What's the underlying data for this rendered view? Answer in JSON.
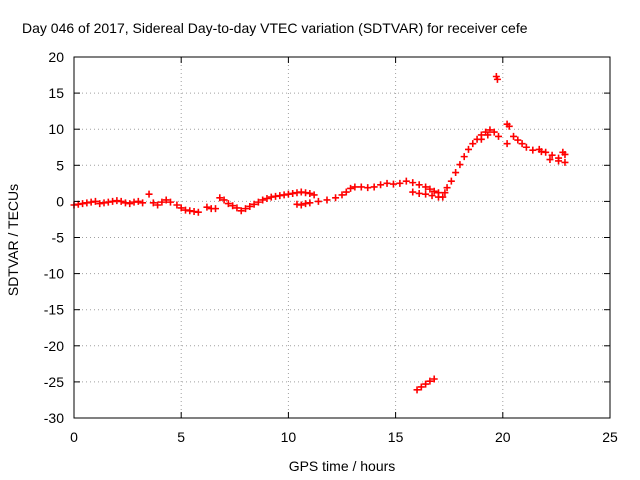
{
  "chart_data": {
    "type": "scatter",
    "title": "Day 046 of 2017, Sidereal Day-to-day VTEC variation (SDTVAR) for receiver cefe",
    "xlabel": "GPS time / hours",
    "ylabel": "SDTVAR / TECUs",
    "xlim": [
      0,
      25
    ],
    "ylim": [
      -30,
      20
    ],
    "xticks": [
      0,
      5,
      10,
      15,
      20,
      25
    ],
    "yticks": [
      -30,
      -25,
      -20,
      -15,
      -10,
      -5,
      0,
      5,
      10,
      15,
      20
    ],
    "grid": true,
    "marker": "+",
    "color": "#ff0000",
    "series": [
      {
        "name": "SDTVAR",
        "points": [
          [
            0.0,
            -0.5
          ],
          [
            0.2,
            -0.4
          ],
          [
            0.4,
            -0.3
          ],
          [
            0.6,
            -0.2
          ],
          [
            0.8,
            -0.1
          ],
          [
            1.0,
            0.0
          ],
          [
            1.2,
            -0.3
          ],
          [
            1.4,
            -0.2
          ],
          [
            1.6,
            -0.1
          ],
          [
            1.8,
            0.0
          ],
          [
            2.0,
            0.1
          ],
          [
            2.2,
            0.0
          ],
          [
            2.4,
            -0.2
          ],
          [
            2.6,
            -0.3
          ],
          [
            2.8,
            -0.1
          ],
          [
            3.0,
            0.0
          ],
          [
            3.2,
            -0.2
          ],
          [
            3.5,
            1.0
          ],
          [
            3.7,
            -0.2
          ],
          [
            3.9,
            -0.5
          ],
          [
            4.1,
            -0.1
          ],
          [
            4.3,
            0.2
          ],
          [
            4.5,
            -0.1
          ],
          [
            4.8,
            -0.5
          ],
          [
            5.0,
            -0.9
          ],
          [
            5.2,
            -1.2
          ],
          [
            5.4,
            -1.3
          ],
          [
            5.6,
            -1.4
          ],
          [
            5.8,
            -1.5
          ],
          [
            6.2,
            -0.8
          ],
          [
            6.4,
            -1.0
          ],
          [
            6.6,
            -1.0
          ],
          [
            6.8,
            0.5
          ],
          [
            7.0,
            0.2
          ],
          [
            7.2,
            -0.3
          ],
          [
            7.4,
            -0.6
          ],
          [
            7.6,
            -0.9
          ],
          [
            7.8,
            -1.3
          ],
          [
            8.0,
            -1.0
          ],
          [
            8.2,
            -0.7
          ],
          [
            8.4,
            -0.4
          ],
          [
            8.6,
            -0.1
          ],
          [
            8.8,
            0.2
          ],
          [
            9.0,
            0.4
          ],
          [
            9.2,
            0.6
          ],
          [
            9.4,
            0.7
          ],
          [
            9.6,
            0.8
          ],
          [
            9.8,
            0.9
          ],
          [
            10.0,
            1.0
          ],
          [
            10.2,
            1.1
          ],
          [
            10.4,
            1.2
          ],
          [
            10.6,
            1.3
          ],
          [
            10.8,
            1.2
          ],
          [
            11.0,
            1.1
          ],
          [
            11.2,
            0.9
          ],
          [
            10.4,
            -0.4
          ],
          [
            10.6,
            -0.5
          ],
          [
            10.8,
            -0.3
          ],
          [
            11.0,
            -0.2
          ],
          [
            11.4,
            0.0
          ],
          [
            11.8,
            0.2
          ],
          [
            12.2,
            0.5
          ],
          [
            12.5,
            0.9
          ],
          [
            12.7,
            1.3
          ],
          [
            12.9,
            1.8
          ],
          [
            13.1,
            2.0
          ],
          [
            13.4,
            2.0
          ],
          [
            13.7,
            1.9
          ],
          [
            14.0,
            2.0
          ],
          [
            14.3,
            2.3
          ],
          [
            14.6,
            2.5
          ],
          [
            14.9,
            2.4
          ],
          [
            15.2,
            2.5
          ],
          [
            15.5,
            2.8
          ],
          [
            15.8,
            2.6
          ],
          [
            16.1,
            2.3
          ],
          [
            16.4,
            2.0
          ],
          [
            16.6,
            1.7
          ],
          [
            16.8,
            1.4
          ],
          [
            17.0,
            1.2
          ],
          [
            15.8,
            1.3
          ],
          [
            16.1,
            1.1
          ],
          [
            16.4,
            1.0
          ],
          [
            16.7,
            0.8
          ],
          [
            17.0,
            0.6
          ],
          [
            17.2,
            0.6
          ],
          [
            17.3,
            1.2
          ],
          [
            17.4,
            1.9
          ],
          [
            17.6,
            2.8
          ],
          [
            17.8,
            4.0
          ],
          [
            18.0,
            5.1
          ],
          [
            18.2,
            6.2
          ],
          [
            18.4,
            7.2
          ],
          [
            18.6,
            8.0
          ],
          [
            18.8,
            8.6
          ],
          [
            19.0,
            9.2
          ],
          [
            19.2,
            9.6
          ],
          [
            19.4,
            9.9
          ],
          [
            19.6,
            9.6
          ],
          [
            19.8,
            9.0
          ],
          [
            19.0,
            8.6
          ],
          [
            19.3,
            9.2
          ],
          [
            19.7,
            17.3
          ],
          [
            19.75,
            16.9
          ],
          [
            20.2,
            10.7
          ],
          [
            20.3,
            10.4
          ],
          [
            20.2,
            8.0
          ],
          [
            20.5,
            9.0
          ],
          [
            20.7,
            8.5
          ],
          [
            20.9,
            8.0
          ],
          [
            21.1,
            7.5
          ],
          [
            21.4,
            7.1
          ],
          [
            21.7,
            7.2
          ],
          [
            22.0,
            6.8
          ],
          [
            22.3,
            6.4
          ],
          [
            22.6,
            6.0
          ],
          [
            22.8,
            6.8
          ],
          [
            22.9,
            6.5
          ],
          [
            21.8,
            6.9
          ],
          [
            22.2,
            5.8
          ],
          [
            22.6,
            5.6
          ],
          [
            22.9,
            5.4
          ],
          [
            16.0,
            -26.1
          ],
          [
            16.2,
            -25.7
          ],
          [
            16.4,
            -25.3
          ],
          [
            16.6,
            -24.9
          ],
          [
            16.8,
            -24.6
          ]
        ]
      }
    ]
  }
}
